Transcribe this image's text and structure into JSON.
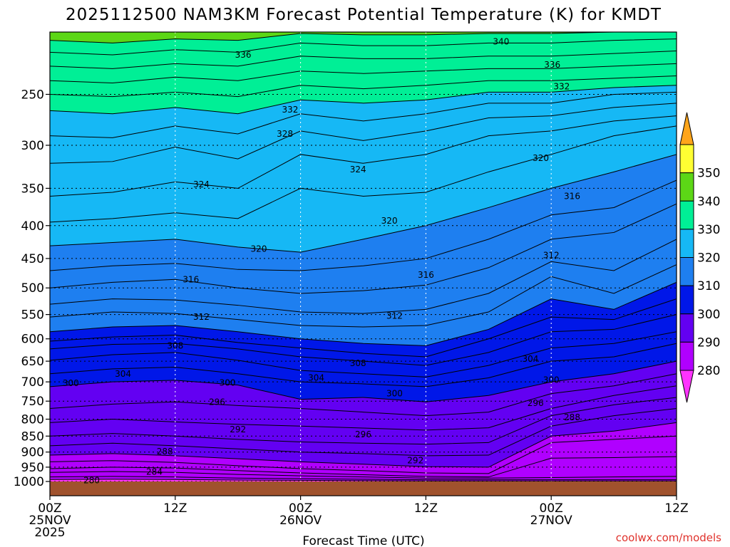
{
  "chart_data": {
    "type": "contour",
    "title": "2025112500 NAM3KM Forecast Potential Temperature (K) for KMDT",
    "xlabel": "Forecast Time (UTC)",
    "x_ticks": [
      {
        "hours": 0,
        "line1": "00Z",
        "line2": "25NOV",
        "line3": "2025"
      },
      {
        "hours": 12,
        "line1": "12Z",
        "line2": "",
        "line3": ""
      },
      {
        "hours": 24,
        "line1": "00Z",
        "line2": "26NOV",
        "line3": ""
      },
      {
        "hours": 36,
        "line1": "12Z",
        "line2": "",
        "line3": ""
      },
      {
        "hours": 48,
        "line1": "00Z",
        "line2": "27NOV",
        "line3": ""
      },
      {
        "hours": 60,
        "line1": "12Z",
        "line2": "",
        "line3": ""
      }
    ],
    "xlim": [
      0,
      60
    ],
    "y_axis": "pressure (hPa), log scale, inverted",
    "ylim": [
      1000,
      200
    ],
    "y_ticks": [
      {
        "value": 250,
        "label": "250"
      },
      {
        "value": 300,
        "label": "300"
      },
      {
        "value": 350,
        "label": "350"
      },
      {
        "value": 400,
        "label": "400"
      },
      {
        "value": 450,
        "label": "450"
      },
      {
        "value": 500,
        "label": "500"
      },
      {
        "value": 550,
        "label": "550"
      },
      {
        "value": 600,
        "label": "600"
      },
      {
        "value": 650,
        "label": "650"
      },
      {
        "value": 700,
        "label": "700"
      },
      {
        "value": 750,
        "label": "750"
      },
      {
        "value": 800,
        "label": "800"
      },
      {
        "value": 850,
        "label": "850"
      },
      {
        "value": 900,
        "label": "900"
      },
      {
        "value": 950,
        "label": "950"
      },
      {
        "value": 1000,
        "label": "1000"
      }
    ],
    "grid": true,
    "colorbar": {
      "placement": "right",
      "ticks": [
        "280",
        "290",
        "300",
        "310",
        "320",
        "330",
        "340",
        "350"
      ],
      "bands": [
        {
          "low": 270,
          "high": 280,
          "color": "#ff33ff"
        },
        {
          "low": 280,
          "high": 290,
          "color": "#b000ff"
        },
        {
          "low": 290,
          "high": 300,
          "color": "#6300f2"
        },
        {
          "low": 300,
          "high": 310,
          "color": "#0017e8"
        },
        {
          "low": 310,
          "high": 320,
          "color": "#1e7ff0"
        },
        {
          "low": 320,
          "high": 330,
          "color": "#16b8f5"
        },
        {
          "low": 330,
          "high": 340,
          "color": "#00ef96"
        },
        {
          "low": 340,
          "high": 350,
          "color": "#5cd716"
        },
        {
          "low": 350,
          "high": 360,
          "color": "#ffff33"
        },
        {
          "low": 360,
          "high": 370,
          "color": "#ffa51a"
        }
      ]
    },
    "ground_color": "#a0522d",
    "isotherm_profiles": [
      {
        "theta": 280,
        "p": [
          993,
          992,
          993,
          995,
          996,
          997,
          998,
          998,
          998,
          998,
          998
        ]
      },
      {
        "theta": 282,
        "p": [
          984,
          982,
          984,
          988,
          990,
          992,
          994,
          994,
          994,
          994,
          994
        ]
      },
      {
        "theta": 284,
        "p": [
          968,
          965,
          968,
          975,
          980,
          984,
          988,
          988,
          986,
          984,
          982
        ]
      },
      {
        "theta": 286,
        "p": [
          955,
          950,
          953,
          962,
          970,
          976,
          982,
          984,
          920,
          918,
          915
        ]
      },
      {
        "theta": 288,
        "p": [
          932,
          928,
          934,
          945,
          955,
          962,
          970,
          972,
          870,
          860,
          850
        ]
      },
      {
        "theta": 290,
        "p": [
          910,
          905,
          912,
          922,
          932,
          940,
          948,
          950,
          850,
          835,
          810
        ]
      },
      {
        "theta": 292,
        "p": [
          880,
          872,
          880,
          890,
          900,
          905,
          912,
          910,
          820,
          790,
          770
        ]
      },
      {
        "theta": 294,
        "p": [
          850,
          842,
          850,
          860,
          868,
          872,
          875,
          870,
          790,
          760,
          740
        ]
      },
      {
        "theta": 296,
        "p": [
          810,
          800,
          808,
          815,
          820,
          826,
          832,
          825,
          770,
          735,
          710
        ]
      },
      {
        "theta": 298,
        "p": [
          770,
          758,
          752,
          762,
          770,
          780,
          790,
          780,
          730,
          710,
          680
        ]
      },
      {
        "theta": 300,
        "p": [
          712,
          700,
          696,
          708,
          745,
          740,
          752,
          735,
          700,
          680,
          650
        ]
      },
      {
        "theta": 302,
        "p": [
          680,
          668,
          664,
          680,
          700,
          705,
          712,
          690,
          650,
          640,
          610
        ]
      },
      {
        "theta": 304,
        "p": [
          648,
          635,
          630,
          648,
          672,
          680,
          688,
          660,
          620,
          610,
          585
        ]
      },
      {
        "theta": 306,
        "p": [
          622,
          612,
          610,
          622,
          640,
          650,
          660,
          630,
          585,
          580,
          550
        ]
      },
      {
        "theta": 308,
        "p": [
          605,
          596,
          592,
          608,
          620,
          632,
          640,
          600,
          555,
          560,
          520
        ]
      },
      {
        "theta": 310,
        "p": [
          585,
          575,
          572,
          585,
          600,
          610,
          615,
          580,
          520,
          540,
          490
        ]
      },
      {
        "theta": 312,
        "p": [
          555,
          545,
          548,
          560,
          572,
          575,
          572,
          545,
          480,
          510,
          460
        ]
      },
      {
        "theta": 314,
        "p": [
          530,
          520,
          522,
          532,
          545,
          548,
          540,
          510,
          455,
          470,
          420
        ]
      },
      {
        "theta": 316,
        "p": [
          500,
          490,
          485,
          500,
          510,
          505,
          495,
          465,
          420,
          410,
          370
        ]
      },
      {
        "theta": 318,
        "p": [
          470,
          462,
          458,
          468,
          470,
          462,
          450,
          420,
          385,
          375,
          340
        ]
      },
      {
        "theta": 320,
        "p": [
          430,
          425,
          420,
          432,
          440,
          420,
          400,
          375,
          350,
          330,
          310
        ]
      },
      {
        "theta": 322,
        "p": [
          395,
          390,
          382,
          390,
          350,
          360,
          355,
          330,
          310,
          290,
          280
        ]
      },
      {
        "theta": 324,
        "p": [
          360,
          355,
          342,
          350,
          310,
          320,
          310,
          290,
          285,
          275,
          270
        ]
      },
      {
        "theta": 326,
        "p": [
          320,
          318,
          302,
          315,
          285,
          295,
          285,
          272,
          270,
          262,
          258
        ]
      },
      {
        "theta": 328,
        "p": [
          290,
          292,
          280,
          288,
          268,
          275,
          268,
          258,
          258,
          250,
          248
        ]
      },
      {
        "theta": 330,
        "p": [
          265,
          268,
          262,
          268,
          255,
          258,
          255,
          248,
          248,
          244,
          242
        ]
      },
      {
        "theta": 332,
        "p": [
          250,
          252,
          248,
          252,
          242,
          245,
          242,
          238,
          238,
          236,
          234
        ]
      },
      {
        "theta": 334,
        "p": [
          238,
          240,
          235,
          238,
          230,
          232,
          230,
          228,
          228,
          226,
          224
        ]
      },
      {
        "theta": 336,
        "p": [
          226,
          228,
          224,
          226,
          218,
          220,
          220,
          218,
          218,
          216,
          214
        ]
      },
      {
        "theta": 338,
        "p": [
          215,
          217,
          213,
          215,
          208,
          210,
          210,
          208,
          208,
          206,
          205
        ]
      },
      {
        "theta": 340,
        "p": [
          206,
          208,
          205,
          206,
          201,
          202,
          202,
          201,
          201,
          200,
          199
        ]
      }
    ],
    "profile_hours": [
      0,
      6,
      12,
      18,
      24,
      30,
      36,
      42,
      48,
      54,
      60
    ],
    "contour_labels": [
      {
        "text": "336",
        "hours": 18.5,
        "p": 217
      },
      {
        "text": "340",
        "hours": 43.2,
        "p": 207
      },
      {
        "text": "336",
        "hours": 48.1,
        "p": 225
      },
      {
        "text": "332",
        "hours": 49.0,
        "p": 243
      },
      {
        "text": "332",
        "hours": 23.0,
        "p": 264
      },
      {
        "text": "328",
        "hours": 22.5,
        "p": 288
      },
      {
        "text": "324",
        "hours": 29.5,
        "p": 327
      },
      {
        "text": "320",
        "hours": 47.0,
        "p": 314
      },
      {
        "text": "324",
        "hours": 14.5,
        "p": 345
      },
      {
        "text": "316",
        "hours": 50.0,
        "p": 360
      },
      {
        "text": "320",
        "hours": 32.5,
        "p": 393
      },
      {
        "text": "320",
        "hours": 20.0,
        "p": 435
      },
      {
        "text": "312",
        "hours": 48.0,
        "p": 445
      },
      {
        "text": "316",
        "hours": 36.0,
        "p": 477
      },
      {
        "text": "316",
        "hours": 13.5,
        "p": 485
      },
      {
        "text": "312",
        "hours": 14.5,
        "p": 555
      },
      {
        "text": "312",
        "hours": 33.0,
        "p": 553
      },
      {
        "text": "308",
        "hours": 12.0,
        "p": 615
      },
      {
        "text": "308",
        "hours": 29.5,
        "p": 655
      },
      {
        "text": "304",
        "hours": 46.0,
        "p": 645
      },
      {
        "text": "304",
        "hours": 7.0,
        "p": 680
      },
      {
        "text": "304",
        "hours": 25.5,
        "p": 690
      },
      {
        "text": "300",
        "hours": 2.0,
        "p": 703
      },
      {
        "text": "300",
        "hours": 17.0,
        "p": 702
      },
      {
        "text": "300",
        "hours": 48.0,
        "p": 695
      },
      {
        "text": "300",
        "hours": 33.0,
        "p": 730
      },
      {
        "text": "296",
        "hours": 16.0,
        "p": 752
      },
      {
        "text": "296",
        "hours": 46.5,
        "p": 755
      },
      {
        "text": "288",
        "hours": 50.0,
        "p": 795
      },
      {
        "text": "292",
        "hours": 18.0,
        "p": 830
      },
      {
        "text": "296",
        "hours": 30.0,
        "p": 845
      },
      {
        "text": "288",
        "hours": 11.0,
        "p": 898
      },
      {
        "text": "292",
        "hours": 35.0,
        "p": 928
      },
      {
        "text": "284",
        "hours": 10.0,
        "p": 966
      },
      {
        "text": "280",
        "hours": 4.0,
        "p": 996
      }
    ]
  },
  "credit": "coolwx.com/models"
}
